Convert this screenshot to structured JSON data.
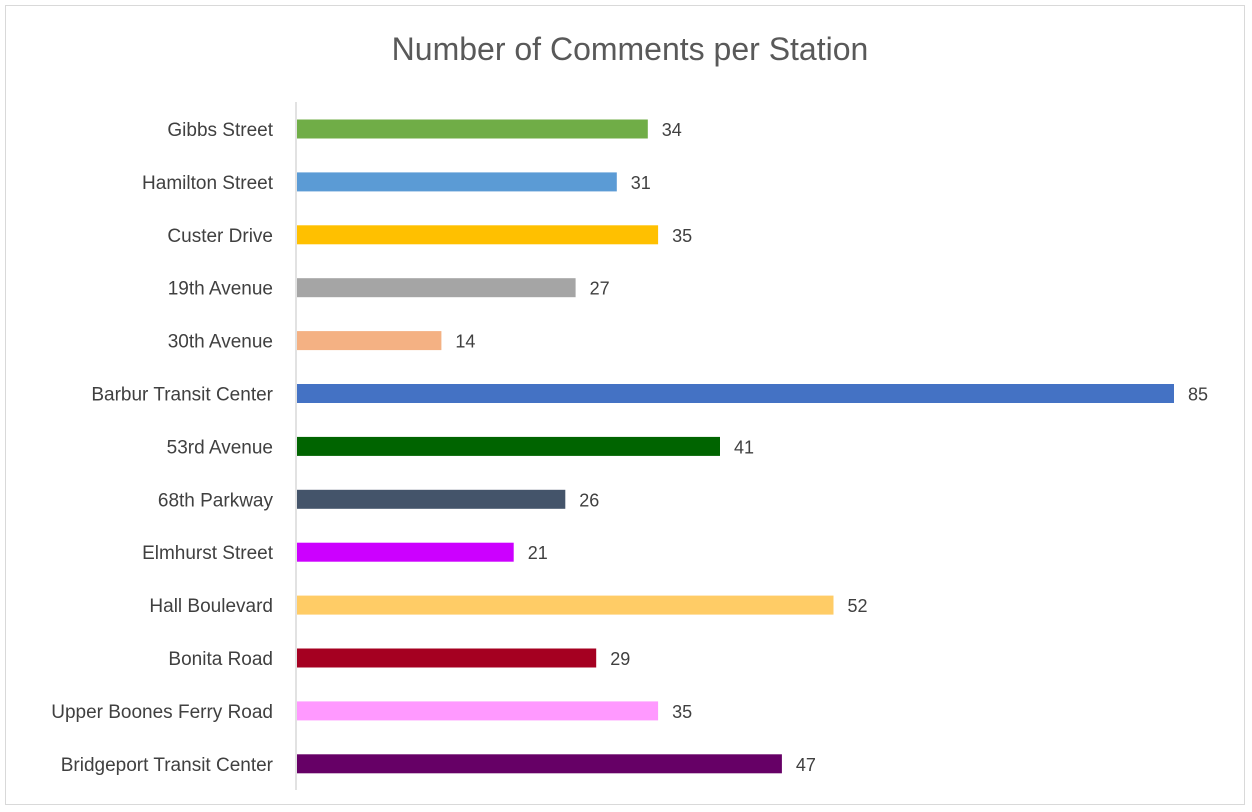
{
  "chart_data": {
    "type": "bar",
    "orientation": "horizontal",
    "title": "Number of Comments per Station",
    "xlabel": "",
    "ylabel": "",
    "xlim": [
      0,
      85
    ],
    "grid": false,
    "legend": "none",
    "data_labels": true,
    "categories": [
      "Gibbs Street",
      "Hamilton Street",
      "Custer Drive",
      "19th Avenue",
      "30th Avenue",
      "Barbur Transit Center",
      "53rd Avenue",
      "68th Parkway",
      "Elmhurst Street",
      "Hall Boulevard",
      "Bonita Road",
      "Upper Boones Ferry Road",
      "Bridgeport Transit Center"
    ],
    "values": [
      34,
      31,
      35,
      27,
      14,
      85,
      41,
      26,
      21,
      52,
      29,
      35,
      47
    ],
    "colors": [
      "#70ad47",
      "#5b9bd5",
      "#ffc000",
      "#a5a5a5",
      "#f4b183",
      "#4472c4",
      "#006400",
      "#44546a",
      "#cc00ff",
      "#ffcc66",
      "#a50021",
      "#ff99ff",
      "#660066"
    ]
  }
}
